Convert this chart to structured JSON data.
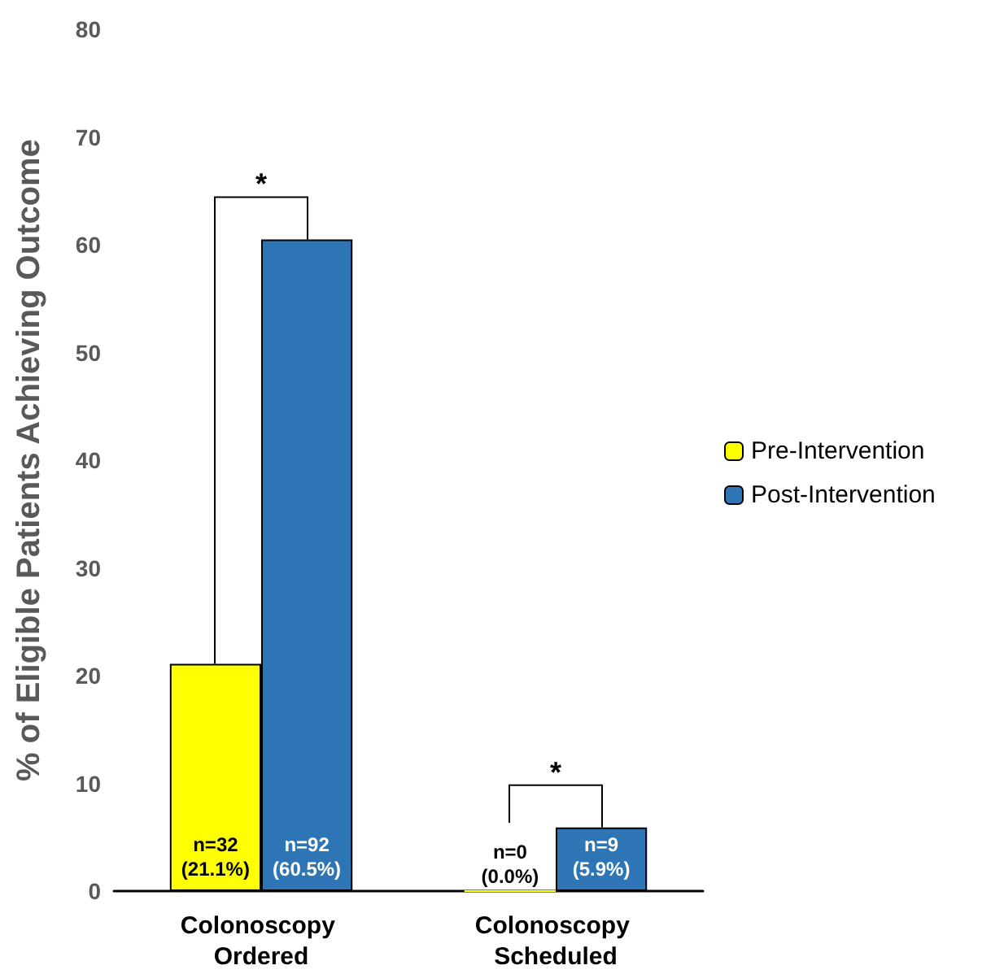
{
  "chart_data": {
    "type": "bar",
    "ylabel": "% of Eligible Patients Achieving Outcome",
    "categories": [
      "Colonoscopy Ordered",
      "Colonoscopy Scheduled"
    ],
    "series": [
      {
        "name": "Pre-Intervention",
        "color": "#ffff00",
        "values": [
          21.1,
          0.0
        ],
        "value_labels": [
          "n=32\n(21.1%)",
          "n=0\n(0.0%)"
        ]
      },
      {
        "name": "Post-Intervention",
        "color": "#2e75b6",
        "values": [
          60.5,
          5.9
        ],
        "value_labels": [
          "n=92\n(60.5%)",
          "n=9\n(5.9%)"
        ]
      }
    ],
    "ylim": [
      0,
      80
    ],
    "yticks": [
      0,
      10,
      20,
      30,
      40,
      50,
      60,
      70,
      80
    ],
    "grid": false,
    "legend": "right",
    "annotations": [
      "*",
      "*"
    ]
  }
}
